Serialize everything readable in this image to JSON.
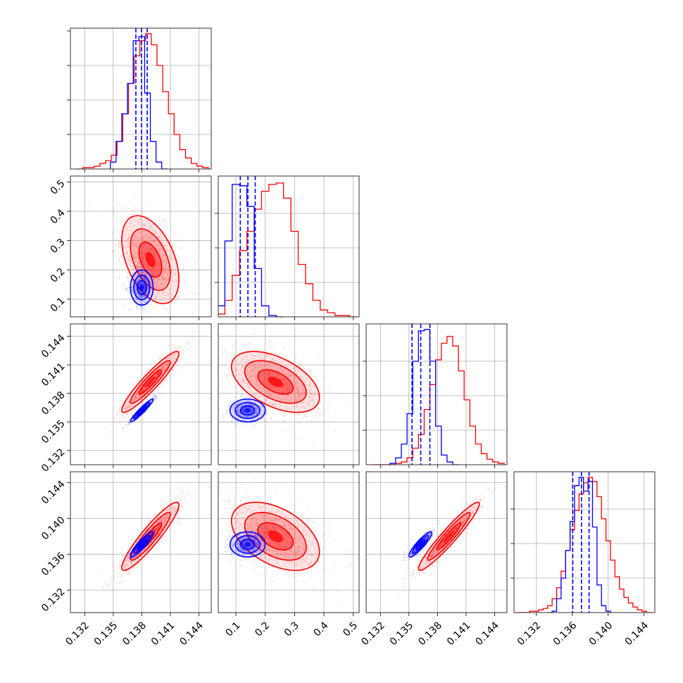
{
  "chart_data": {
    "type": "corner",
    "parameters": 4,
    "grid": true,
    "series": [
      {
        "name": "",
        "color": "#ff0000",
        "marginals": [
          {
            "x": [
              0.1315,
              0.1321,
              0.1327,
              0.1333,
              0.1339,
              0.1345,
              0.1351,
              0.1357,
              0.1363,
              0.1369,
              0.1375,
              0.1381,
              0.1387,
              0.1393,
              0.1399,
              0.1405,
              0.1411,
              0.1417,
              0.1423,
              0.1429,
              0.1435,
              0.1441,
              0.1447
            ],
            "y": [
              0.0,
              0.01,
              0.01,
              0.02,
              0.04,
              0.06,
              0.1,
              0.2,
              0.4,
              0.62,
              0.82,
              0.93,
              0.98,
              0.9,
              0.75,
              0.56,
              0.4,
              0.25,
              0.14,
              0.08,
              0.04,
              0.02,
              0.01
            ]
          },
          {
            "x": [
              0.05,
              0.075,
              0.1,
              0.125,
              0.15,
              0.175,
              0.2,
              0.225,
              0.25,
              0.275,
              0.3,
              0.325,
              0.35,
              0.375,
              0.4,
              0.425,
              0.45,
              0.475,
              0.5
            ],
            "y": [
              0.02,
              0.12,
              0.3,
              0.48,
              0.62,
              0.78,
              0.91,
              0.96,
              0.97,
              0.86,
              0.62,
              0.38,
              0.24,
              0.12,
              0.05,
              0.03,
              0.01,
              0.01,
              0.0
            ]
          },
          {
            "x": [
              0.1315,
              0.1321,
              0.1327,
              0.1333,
              0.1339,
              0.1345,
              0.1351,
              0.1357,
              0.1363,
              0.1369,
              0.1375,
              0.1381,
              0.1387,
              0.1393,
              0.1399,
              0.1405,
              0.1411,
              0.1417,
              0.1423,
              0.1429,
              0.1435,
              0.1441,
              0.1447
            ],
            "y": [
              0,
              0,
              0,
              0,
              0.01,
              0.02,
              0.05,
              0.12,
              0.22,
              0.4,
              0.58,
              0.76,
              0.88,
              0.93,
              0.86,
              0.68,
              0.47,
              0.28,
              0.15,
              0.08,
              0.04,
              0.02,
              0.01
            ]
          },
          {
            "x": [
              0.13,
              0.1305,
              0.131,
              0.1315,
              0.132,
              0.1325,
              0.133,
              0.1335,
              0.134,
              0.1345,
              0.135,
              0.1355,
              0.136,
              0.1365,
              0.137,
              0.1375,
              0.138,
              0.1385,
              0.139,
              0.1395,
              0.14,
              0.1405,
              0.141,
              0.1415,
              0.142,
              0.1425,
              0.143,
              0.1435,
              0.144,
              0.1445
            ],
            "y": [
              0,
              0,
              0,
              0.01,
              0.01,
              0.02,
              0.03,
              0.05,
              0.1,
              0.18,
              0.3,
              0.45,
              0.6,
              0.74,
              0.86,
              0.94,
              0.98,
              0.95,
              0.84,
              0.68,
              0.52,
              0.38,
              0.26,
              0.17,
              0.11,
              0.07,
              0.04,
              0.02,
              0.01,
              0
            ]
          }
        ],
        "means": [
          0.1389,
          0.235,
          0.1392,
          0.138
        ],
        "sigmas": [
          0.0015,
          0.075,
          0.0016,
          0.0019
        ],
        "correlations": {
          "1-0": -0.45,
          "2-0": 0.93,
          "2-1": -0.5,
          "3-0": 0.92,
          "3-1": -0.45,
          "3-2": 0.95
        }
      },
      {
        "name": "",
        "color": "#0000ff",
        "marginals": [
          {
            "x": [
              0.135,
              0.1356,
              0.1362,
              0.1368,
              0.1374,
              0.138,
              0.1386,
              0.1392,
              0.1398,
              0.1404
            ],
            "y": [
              0.05,
              0.2,
              0.4,
              0.62,
              0.93,
              0.96,
              0.55,
              0.2,
              0.05,
              0.0
            ]
          },
          {
            "x": [
              0.05,
              0.075,
              0.1,
              0.125,
              0.15,
              0.175,
              0.2,
              0.225,
              0.25
            ],
            "y": [
              0.08,
              0.55,
              0.96,
              0.95,
              0.8,
              0.35,
              0.08,
              0.01,
              0.0
            ]
          },
          {
            "x": [
              0.1333,
              0.1339,
              0.1345,
              0.1351,
              0.1357,
              0.1363,
              0.1369,
              0.1375,
              0.1381,
              0.1387,
              0.1393,
              0.1399
            ],
            "y": [
              0.01,
              0.05,
              0.15,
              0.37,
              0.75,
              0.97,
              0.98,
              0.75,
              0.28,
              0.07,
              0.02,
              0.0
            ]
          },
          {
            "x": [
              0.1335,
              0.134,
              0.1345,
              0.135,
              0.1355,
              0.136,
              0.1365,
              0.137,
              0.1375,
              0.138,
              0.1385,
              0.139,
              0.1395,
              0.14
            ],
            "y": [
              0,
              0.01,
              0.1,
              0.25,
              0.45,
              0.66,
              0.92,
              0.98,
              0.88,
              0.95,
              0.62,
              0.2,
              0.05,
              0.01
            ]
          }
        ],
        "means": [
          0.138,
          0.14,
          0.1362,
          0.1371
        ],
        "sigmas": [
          0.0006,
          0.03,
          0.0006,
          0.0007
        ],
        "quantiles": [
          [
            0.13738,
            0.13797,
            0.13857
          ],
          [
            0.115,
            0.141,
            0.166
          ],
          [
            0.13532,
            0.13624,
            0.1372
          ],
          [
            0.13605,
            0.13702,
            0.13787
          ]
        ],
        "correlations": {
          "1-0": 0.0,
          "2-0": 0.95,
          "2-1": 0.0,
          "3-0": 0.9,
          "3-1": 0.0,
          "3-2": 0.9
        }
      }
    ],
    "axes": [
      {
        "range": [
          0.1305,
          0.1453
        ],
        "ticks": [
          0.132,
          0.135,
          0.138,
          0.141,
          0.144
        ],
        "tick_labels": [
          "0.132",
          "0.135",
          "0.138",
          "0.141",
          "0.144"
        ]
      },
      {
        "range": [
          0.04,
          0.52
        ],
        "ticks": [
          0.1,
          0.2,
          0.3,
          0.4,
          0.5
        ],
        "tick_labels": [
          "0.1",
          "0.2",
          "0.3",
          "0.4",
          "0.5"
        ]
      },
      {
        "range": [
          0.1305,
          0.1453
        ],
        "ticks": [
          0.132,
          0.135,
          0.138,
          0.141,
          0.144
        ],
        "tick_labels": [
          "0.132",
          "0.135",
          "0.138",
          "0.141",
          "0.144"
        ]
      },
      {
        "range": [
          0.1295,
          0.1452
        ],
        "ticks": [
          0.132,
          0.136,
          0.14,
          0.144
        ],
        "tick_labels": [
          "0.132",
          "0.136",
          "0.140",
          "0.144"
        ]
      }
    ]
  }
}
